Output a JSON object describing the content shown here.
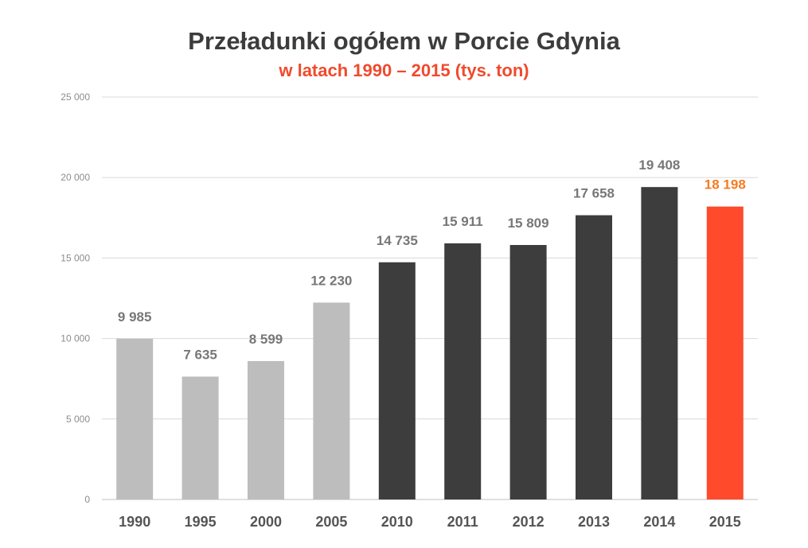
{
  "chart_data": {
    "type": "bar",
    "title": "Przeładunki ogółem w Porcie Gdynia",
    "subtitle": "w latach 1990 – 2015 (tys. ton)",
    "categories": [
      "1990",
      "1995",
      "2000",
      "2005",
      "2010",
      "2011",
      "2012",
      "2013",
      "2014",
      "2015"
    ],
    "values": [
      9985,
      7635,
      8599,
      12230,
      14735,
      15911,
      15809,
      17658,
      19408,
      18198
    ],
    "data_labels": [
      "9 985",
      "7 635",
      "8 599",
      "12 230",
      "14 735",
      "15 911",
      "15 809",
      "17 658",
      "19 408",
      "18 198"
    ],
    "bar_colors": [
      "#bdbdbd",
      "#bdbdbd",
      "#bdbdbd",
      "#bdbdbd",
      "#3d3d3d",
      "#3d3d3d",
      "#3d3d3d",
      "#3d3d3d",
      "#3d3d3d",
      "#ff4b2b"
    ],
    "label_colors": [
      "#777777",
      "#777777",
      "#777777",
      "#777777",
      "#777777",
      "#777777",
      "#777777",
      "#777777",
      "#777777",
      "#f47b20"
    ],
    "y_ticks": [
      0,
      5000,
      10000,
      15000,
      20000,
      25000
    ],
    "y_tick_labels": [
      "0",
      "5 000",
      "10 000",
      "15 000",
      "20 000",
      "25 000"
    ],
    "ylim": [
      0,
      25000
    ],
    "xlabel": "",
    "ylabel": "",
    "grid": true,
    "legend": "none"
  }
}
